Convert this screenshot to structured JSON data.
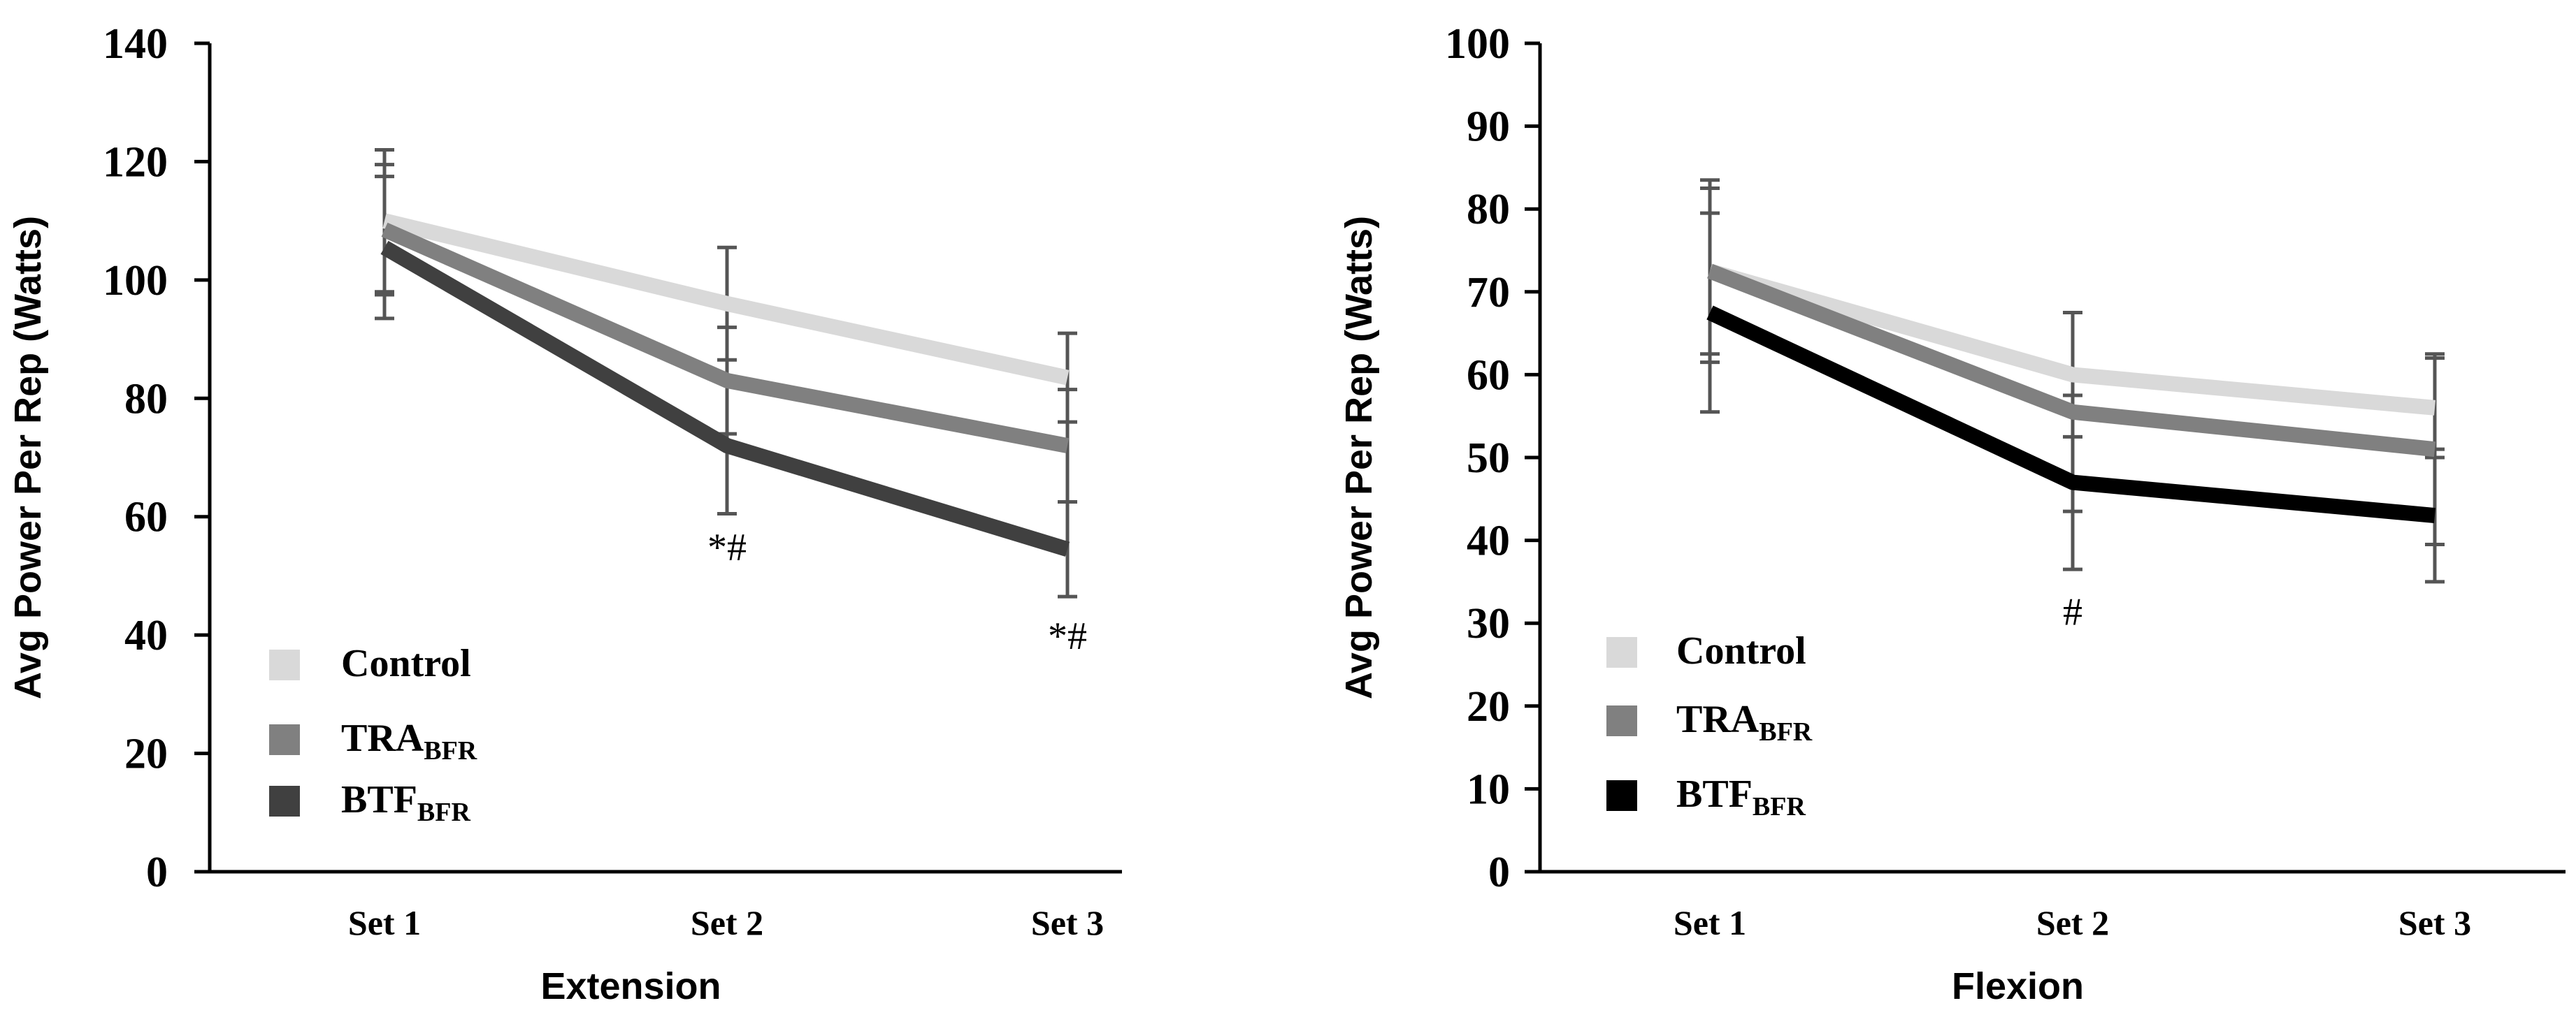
{
  "chart_data": [
    {
      "type": "line",
      "xlabel": "Extension",
      "ylabel": "Avg Power Per Rep (Watts)",
      "categories": [
        "Set 1",
        "Set 2",
        "Set 3"
      ],
      "ylim": [
        0,
        140
      ],
      "yticks": [
        0,
        20,
        40,
        60,
        80,
        100,
        120,
        140
      ],
      "yticklabels": [
        "0",
        "20",
        "40",
        "60",
        "80",
        "100",
        "120",
        "140"
      ],
      "series": [
        {
          "name": "Control",
          "label_main": "Control",
          "label_sub": "",
          "color": "#d9d9d9",
          "values": [
            110,
            96,
            83.5
          ],
          "errors": [
            12,
            9.5,
            7.5
          ]
        },
        {
          "name": "TRA_BFR",
          "label_main": "TRA",
          "label_sub": "BFR",
          "color": "#808080",
          "values": [
            108.5,
            83,
            72
          ],
          "errors": [
            11,
            9,
            9.5
          ]
        },
        {
          "name": "BTF_BFR",
          "label_main": "BTF",
          "label_sub": "BFR",
          "color": "#404040",
          "values": [
            105.5,
            72,
            54.5
          ],
          "errors": [
            12,
            11.5,
            8
          ]
        }
      ],
      "annotations": [
        {
          "category": "Set 2",
          "text": "*#",
          "y": 55
        },
        {
          "category": "Set 3",
          "text": "*#",
          "y": 40
        }
      ]
    },
    {
      "type": "line",
      "xlabel": "Flexion",
      "ylabel": "Avg Power Per Rep (Watts)",
      "categories": [
        "Set 1",
        "Set 2",
        "Set 3"
      ],
      "ylim": [
        0,
        100
      ],
      "yticks": [
        0,
        10,
        20,
        30,
        40,
        50,
        60,
        70,
        80,
        90,
        100
      ],
      "yticklabels": [
        "0",
        "10",
        "20",
        "30",
        "40",
        "50",
        "60",
        "70",
        "80",
        "90",
        "100"
      ],
      "series": [
        {
          "name": "Control",
          "label_main": "Control",
          "label_sub": "",
          "color": "#d9d9d9",
          "values": [
            72.5,
            60,
            56
          ],
          "errors": [
            10,
            7.5,
            6
          ]
        },
        {
          "name": "TRA_BFR",
          "label_main": "TRA",
          "label_sub": "BFR",
          "color": "#808080",
          "values": [
            72.5,
            55.5,
            51
          ],
          "errors": [
            11,
            12,
            11.5
          ]
        },
        {
          "name": "BTF_BFR",
          "label_main": "BTF",
          "label_sub": "BFR",
          "color": "#000000",
          "values": [
            67.5,
            47,
            43
          ],
          "errors": [
            12,
            10.5,
            8
          ]
        }
      ],
      "annotations": [
        {
          "category": "Set 2",
          "text": "#",
          "y": 31.5
        }
      ]
    }
  ]
}
